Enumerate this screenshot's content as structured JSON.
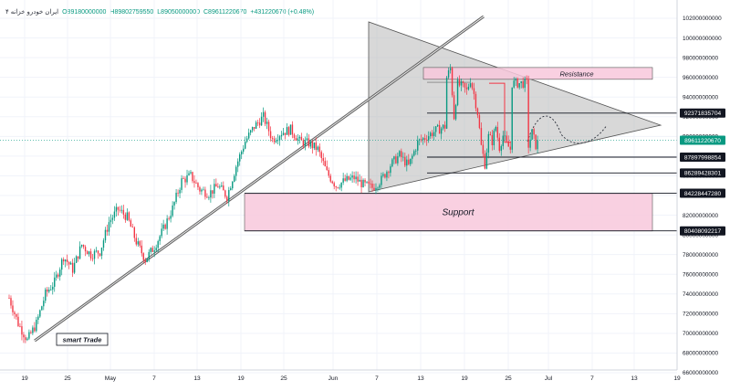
{
  "legend": {
    "symbol": "ایران خودرو خزانه ۴",
    "open": "O89180000000",
    "high": "H89802759550",
    "low": "L89050000000",
    "close": "C89611220670",
    "change": "+431220670 (+0.48%)"
  },
  "colors": {
    "up": "#089981",
    "down": "#f23645",
    "triangle_fill": "#b8b8b8",
    "zone_fill": "#f8c8dc",
    "label_bg": "#131722",
    "price_label_bg": "#089981",
    "price_line": "#089981"
  },
  "chart_data": {
    "type": "candlestick",
    "x_ticks": [
      "19",
      "25",
      "May",
      "7",
      "13",
      "19",
      "25",
      "Jun",
      "7",
      "13",
      "19",
      "25",
      "Jul",
      "7",
      "13",
      "19"
    ],
    "y_ticks": [
      "102000000000",
      "100000000000",
      "98000000000",
      "96000000000",
      "94000000000",
      "92000000000",
      "90000000000",
      "88000000000",
      "86000000000",
      "84000000000",
      "82000000000",
      "80000000000",
      "78000000000",
      "76000000000",
      "74000000000",
      "72000000000",
      "70000000000",
      "68000000000",
      "66000000000"
    ],
    "ylim": [
      65000000000,
      103500000000
    ],
    "candle_path": [
      [
        0,
        73.6
      ],
      [
        5,
        71.0
      ],
      [
        10,
        69.3
      ],
      [
        15,
        71.0
      ],
      [
        20,
        74.0
      ],
      [
        25,
        75.2
      ],
      [
        30,
        77.8
      ],
      [
        35,
        76.5
      ],
      [
        40,
        79.0
      ],
      [
        45,
        78.0
      ],
      [
        50,
        78.3
      ],
      [
        55,
        81.3
      ],
      [
        60,
        82.6
      ],
      [
        65,
        81.8
      ],
      [
        70,
        79.3
      ],
      [
        75,
        77.5
      ],
      [
        80,
        78.8
      ],
      [
        85,
        80.6
      ],
      [
        90,
        82.7
      ],
      [
        95,
        85.5
      ],
      [
        100,
        86.0
      ],
      [
        105,
        84.6
      ],
      [
        110,
        84.2
      ],
      [
        115,
        85.0
      ],
      [
        120,
        83.9
      ],
      [
        125,
        87.0
      ],
      [
        130,
        89.5
      ],
      [
        135,
        91.0
      ],
      [
        140,
        92.0
      ],
      [
        145,
        89.7
      ],
      [
        150,
        90.4
      ],
      [
        155,
        90.7
      ],
      [
        160,
        89.5
      ],
      [
        165,
        89.3
      ],
      [
        170,
        88.7
      ],
      [
        175,
        86.3
      ],
      [
        180,
        85.0
      ],
      [
        185,
        85.5
      ],
      [
        190,
        85.8
      ],
      [
        195,
        85.1
      ],
      [
        200,
        84.8
      ],
      [
        205,
        85.6
      ],
      [
        210,
        87.1
      ],
      [
        215,
        88.1
      ],
      [
        220,
        87.0
      ],
      [
        225,
        89.4
      ],
      [
        230,
        90.0
      ],
      [
        235,
        90.6
      ],
      [
        240,
        91.0
      ],
      [
        241,
        96.0
      ],
      [
        243,
        96.9
      ],
      [
        245,
        92.0
      ],
      [
        247,
        95.3
      ],
      [
        250,
        95.0
      ],
      [
        252,
        94.6
      ],
      [
        254,
        95.8
      ],
      [
        256,
        94.3
      ],
      [
        258,
        92.4
      ],
      [
        260,
        89.0
      ],
      [
        262,
        87.2
      ],
      [
        264,
        90.0
      ],
      [
        266,
        89.5
      ],
      [
        268,
        91.0
      ],
      [
        270,
        88.9
      ],
      [
        272,
        90.1
      ],
      [
        274,
        89.2
      ],
      [
        276,
        88.7
      ],
      [
        277,
        95.4
      ],
      [
        285,
        95.4
      ],
      [
        286,
        89.1
      ],
      [
        288,
        90.4
      ],
      [
        290,
        89.1
      ],
      [
        292,
        89.6
      ]
    ],
    "annotations": {
      "resistance_label": "Resistance",
      "support_label": "Support",
      "brand_label": "smart Trade"
    },
    "levels": [
      {
        "value": 92371835704,
        "label": "92371835704"
      },
      {
        "value": 87897998854,
        "label": "87897998854"
      },
      {
        "value": 86289428301,
        "label": "86289428301"
      },
      {
        "value": 84228447280,
        "label": "84228447280"
      },
      {
        "value": 80408092217,
        "label": "80408092217"
      }
    ],
    "last_price": {
      "value": 89611220670,
      "label": "89611220670"
    },
    "resistance_zone": [
      95800000000,
      97000000000
    ],
    "support_zone": [
      80400000000,
      84200000000
    ]
  }
}
